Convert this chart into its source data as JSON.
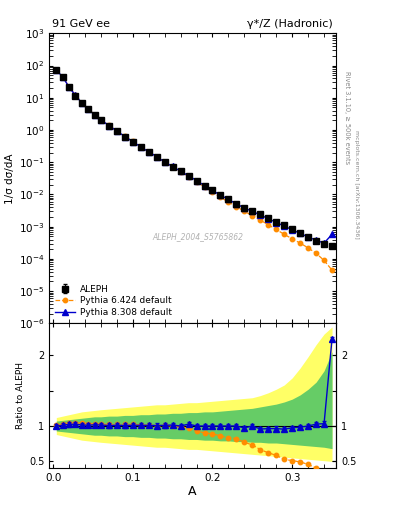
{
  "title_left": "91 GeV ee",
  "title_right": "γ*/Z (Hadronic)",
  "ylabel_main": "1/σ dσ/dA",
  "ylabel_ratio": "Ratio to ALEPH",
  "xlabel": "A",
  "right_label_top": "Rivet 3.1.10, ≥ 500k events",
  "right_label_bottom": "mcplots.cern.ch [arXiv:1306.3436]",
  "watermark": "ALEPH_2004_S5765862",
  "aleph_x": [
    0.004,
    0.012,
    0.02,
    0.028,
    0.036,
    0.044,
    0.052,
    0.06,
    0.07,
    0.08,
    0.09,
    0.1,
    0.11,
    0.12,
    0.13,
    0.14,
    0.15,
    0.16,
    0.17,
    0.18,
    0.19,
    0.2,
    0.21,
    0.22,
    0.23,
    0.24,
    0.25,
    0.26,
    0.27,
    0.28,
    0.29,
    0.3,
    0.31,
    0.32,
    0.33,
    0.34,
    0.35
  ],
  "aleph_y": [
    72.0,
    44.0,
    21.0,
    11.5,
    6.8,
    4.4,
    2.9,
    2.05,
    1.35,
    0.92,
    0.62,
    0.43,
    0.295,
    0.208,
    0.148,
    0.1,
    0.073,
    0.052,
    0.037,
    0.027,
    0.0188,
    0.0133,
    0.0095,
    0.007,
    0.0051,
    0.0039,
    0.003,
    0.0024,
    0.00185,
    0.0014,
    0.0011,
    0.00082,
    0.00063,
    0.00048,
    0.00037,
    0.0003,
    0.00026
  ],
  "aleph_yerr": [
    2.5,
    1.3,
    0.65,
    0.35,
    0.21,
    0.13,
    0.09,
    0.062,
    0.041,
    0.028,
    0.019,
    0.013,
    0.009,
    0.0063,
    0.0045,
    0.0031,
    0.0022,
    0.0016,
    0.0012,
    0.00082,
    0.00057,
    0.00041,
    0.00029,
    0.00021,
    0.00016,
    0.00012,
    9.2e-05,
    7.4e-05,
    5.7e-05,
    4.3e-05,
    3.4e-05,
    2.6e-05,
    2e-05,
    1.5e-05,
    1.2e-05,
    9.5e-06,
    8.2e-06
  ],
  "py6_x": [
    0.004,
    0.012,
    0.02,
    0.028,
    0.036,
    0.044,
    0.052,
    0.06,
    0.07,
    0.08,
    0.09,
    0.1,
    0.11,
    0.12,
    0.13,
    0.14,
    0.15,
    0.16,
    0.17,
    0.18,
    0.19,
    0.2,
    0.21,
    0.22,
    0.23,
    0.24,
    0.25,
    0.26,
    0.27,
    0.28,
    0.29,
    0.3,
    0.31,
    0.32,
    0.33,
    0.34,
    0.35
  ],
  "py6_y": [
    73.5,
    45.0,
    22.0,
    12.0,
    7.1,
    4.55,
    3.0,
    2.1,
    1.38,
    0.94,
    0.635,
    0.44,
    0.3,
    0.21,
    0.149,
    0.101,
    0.073,
    0.051,
    0.036,
    0.025,
    0.017,
    0.0118,
    0.0082,
    0.0058,
    0.0042,
    0.003,
    0.0022,
    0.0016,
    0.00115,
    0.00082,
    0.00058,
    0.00042,
    0.00031,
    0.00022,
    0.00015,
    9e-05,
    4.5e-05
  ],
  "py8_x": [
    0.004,
    0.012,
    0.02,
    0.028,
    0.036,
    0.044,
    0.052,
    0.06,
    0.07,
    0.08,
    0.09,
    0.1,
    0.11,
    0.12,
    0.13,
    0.14,
    0.15,
    0.16,
    0.17,
    0.18,
    0.19,
    0.2,
    0.21,
    0.22,
    0.23,
    0.24,
    0.25,
    0.26,
    0.27,
    0.28,
    0.29,
    0.3,
    0.31,
    0.32,
    0.33,
    0.34,
    0.35
  ],
  "py8_y": [
    72.0,
    44.5,
    21.5,
    11.8,
    6.9,
    4.45,
    2.95,
    2.08,
    1.36,
    0.93,
    0.625,
    0.435,
    0.298,
    0.21,
    0.149,
    0.101,
    0.074,
    0.052,
    0.038,
    0.027,
    0.0188,
    0.0133,
    0.0095,
    0.007,
    0.0051,
    0.0038,
    0.003,
    0.0023,
    0.00178,
    0.00135,
    0.00105,
    0.0008,
    0.00062,
    0.00048,
    0.00038,
    0.00031,
    0.00058
  ],
  "green_band_lower": [
    0.93,
    0.92,
    0.91,
    0.9,
    0.89,
    0.88,
    0.87,
    0.87,
    0.86,
    0.86,
    0.85,
    0.85,
    0.84,
    0.84,
    0.83,
    0.83,
    0.82,
    0.82,
    0.81,
    0.81,
    0.8,
    0.8,
    0.79,
    0.79,
    0.78,
    0.78,
    0.77,
    0.77,
    0.76,
    0.76,
    0.75,
    0.74,
    0.73,
    0.72,
    0.71,
    0.7,
    0.68
  ],
  "green_band_upper": [
    1.07,
    1.08,
    1.09,
    1.1,
    1.11,
    1.12,
    1.13,
    1.13,
    1.14,
    1.14,
    1.15,
    1.15,
    1.16,
    1.16,
    1.17,
    1.17,
    1.18,
    1.18,
    1.19,
    1.19,
    1.2,
    1.2,
    1.21,
    1.22,
    1.23,
    1.24,
    1.25,
    1.27,
    1.29,
    1.31,
    1.34,
    1.38,
    1.44,
    1.52,
    1.62,
    1.78,
    2.05
  ],
  "yellow_band_lower": [
    0.88,
    0.86,
    0.84,
    0.82,
    0.8,
    0.79,
    0.78,
    0.77,
    0.76,
    0.75,
    0.74,
    0.73,
    0.72,
    0.71,
    0.7,
    0.7,
    0.69,
    0.68,
    0.67,
    0.67,
    0.66,
    0.65,
    0.64,
    0.63,
    0.62,
    0.61,
    0.6,
    0.59,
    0.58,
    0.57,
    0.56,
    0.55,
    0.54,
    0.53,
    0.52,
    0.51,
    0.5
  ],
  "yellow_band_upper": [
    1.12,
    1.14,
    1.16,
    1.18,
    1.2,
    1.21,
    1.22,
    1.23,
    1.24,
    1.25,
    1.26,
    1.27,
    1.28,
    1.29,
    1.3,
    1.3,
    1.31,
    1.32,
    1.33,
    1.33,
    1.34,
    1.35,
    1.36,
    1.37,
    1.38,
    1.39,
    1.4,
    1.43,
    1.47,
    1.52,
    1.58,
    1.68,
    1.82,
    1.98,
    2.15,
    2.3,
    2.4
  ],
  "color_aleph": "#000000",
  "color_py6": "#FF8C00",
  "color_py8": "#0000CC",
  "color_green_band": "#66CC66",
  "color_yellow_band": "#FFFF66",
  "main_ylim_low": 1e-06,
  "main_ylim_high": 1000,
  "ratio_ylim": [
    0.4,
    2.45
  ],
  "xlim": [
    -0.005,
    0.355
  ],
  "xticks": [
    0.0,
    0.1,
    0.2,
    0.3
  ]
}
